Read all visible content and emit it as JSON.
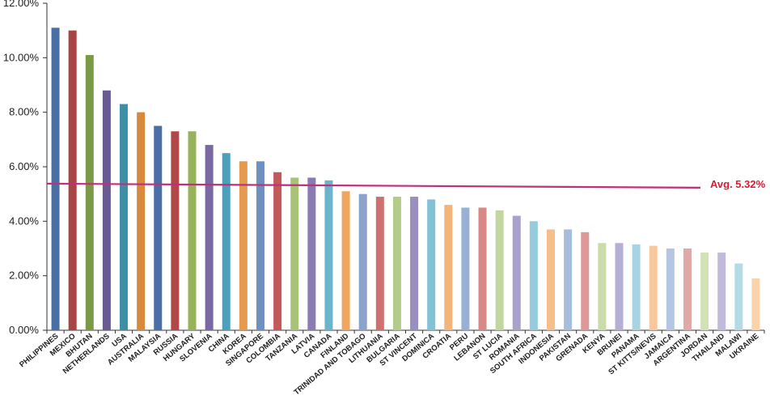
{
  "chart_data": {
    "type": "bar",
    "categories": [
      "PHILIPPINES",
      "MEXICO",
      "BHUTAN",
      "NETHERLANDS",
      "USA",
      "AUSTRALIA",
      "MALAYSIA",
      "RUSSIA",
      "HUNGARY",
      "SLOVENIA",
      "CHINA",
      "KOREA",
      "SINGAPORE",
      "COLOMBIA",
      "TANZANIA",
      "LATVIA",
      "CANADA",
      "FINLAND",
      "TRINIDAD AND TOBAGO",
      "LITHUANIA",
      "BULGARIA",
      "ST VINCENT",
      "DOMINICA",
      "CROATIA",
      "PERU",
      "LEBANON",
      "ST LUCIA",
      "ROMANIA",
      "SOUTH AFRICA",
      "INDONESIA",
      "PAKISTAN",
      "GRENADA",
      "KENYA",
      "BRUNEI",
      "PANAMA",
      "ST KITTS/NEVIS",
      "JAMAICA",
      "ARGENTINA",
      "JORDAN",
      "THAILAND",
      "MALAWI",
      "UKRAINE"
    ],
    "values": [
      11.1,
      11.0,
      10.1,
      8.8,
      8.3,
      8.0,
      7.5,
      7.3,
      7.3,
      6.8,
      6.5,
      6.2,
      6.2,
      5.8,
      5.6,
      5.6,
      5.5,
      5.1,
      5.0,
      4.9,
      4.9,
      4.9,
      4.8,
      4.6,
      4.5,
      4.5,
      4.4,
      4.2,
      4.0,
      3.7,
      3.7,
      3.6,
      3.2,
      3.2,
      3.15,
      3.1,
      3.0,
      3.0,
      2.85,
      2.85,
      2.45,
      1.9
    ],
    "colors": [
      "#4a6fa5",
      "#a84444",
      "#7a9a45",
      "#6a5a92",
      "#3d8fa8",
      "#d78a3d",
      "#4a6fa5",
      "#b04848",
      "#96b35a",
      "#7a68a2",
      "#4aa0bd",
      "#e69a4e",
      "#7090c0",
      "#c25a5a",
      "#a8c278",
      "#8a7cb2",
      "#6ab4cc",
      "#f0a660",
      "#8aa2cc",
      "#cf7070",
      "#b4cc8a",
      "#9a8ec0",
      "#82c2d6",
      "#f5b47a",
      "#98b0d6",
      "#d98888",
      "#c2d6a0",
      "#aaa0cc",
      "#94ccde",
      "#f7be8a",
      "#a8bcdc",
      "#dd9898",
      "#cadcaa",
      "#b6aed4",
      "#a6d4e2",
      "#f9c89a",
      "#b6c6e2",
      "#e1a8a8",
      "#d2e2b6",
      "#c2badc",
      "#b4dae6",
      "#fbd2aa"
    ],
    "ylim": [
      0,
      12
    ],
    "yticks": [
      0,
      2,
      4,
      6,
      8,
      10,
      12
    ],
    "ytick_labels": [
      "0.00%",
      "2.00%",
      "4.00%",
      "6.00%",
      "8.00%",
      "10.00%",
      "12.00%"
    ],
    "average": 5.32,
    "average_label": "Avg. 5.32%",
    "average_color": "#c0307a",
    "average_label_color": "#e0192f"
  }
}
